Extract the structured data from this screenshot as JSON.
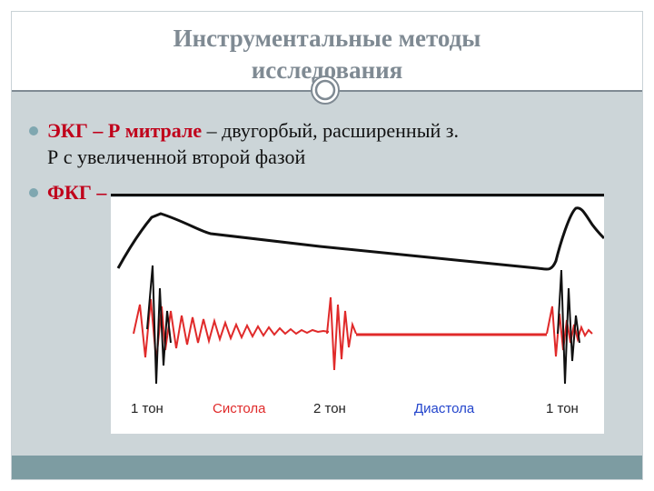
{
  "title_line1": "Инструментальные методы",
  "title_line2": "исследования",
  "bullet1": {
    "bold_part": "ЭКГ – Р митрале",
    "rest_line1": " – двугорбый, расширенный з.",
    "line2": "Р с увеличенной второй фазой"
  },
  "bullet2": {
    "bold_part": "ФКГ –"
  },
  "figure_labels": {
    "tone1_left": "1 тон",
    "systole": "Систола",
    "tone2": "2 тон",
    "diastole": "Диастола",
    "tone1_right": "1 тон"
  },
  "colors": {
    "systole": "#e02a2a",
    "diastole": "#2244cc",
    "tone": "#222222"
  }
}
